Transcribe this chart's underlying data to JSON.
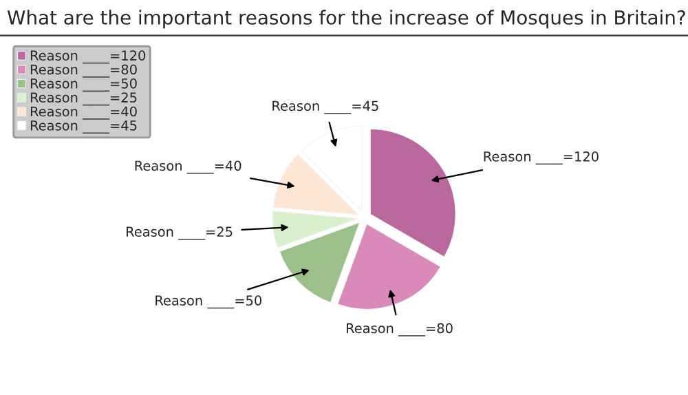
{
  "chart_data": {
    "type": "pie",
    "title": "What are the important reasons for the increase of Mosques in Britain?",
    "categories": [
      "Reason ____=120",
      "Reason ____=80",
      "Reason ____=50",
      "Reason ____=25",
      "Reason ____=40",
      "Reason ____=45"
    ],
    "values": [
      120,
      80,
      50,
      25,
      40,
      45
    ],
    "colors": [
      "#b8689a",
      "#d98ab8",
      "#9cc08a",
      "#d8f0cc",
      "#fde6d6",
      "#ffffff"
    ],
    "legend": "top left"
  }
}
